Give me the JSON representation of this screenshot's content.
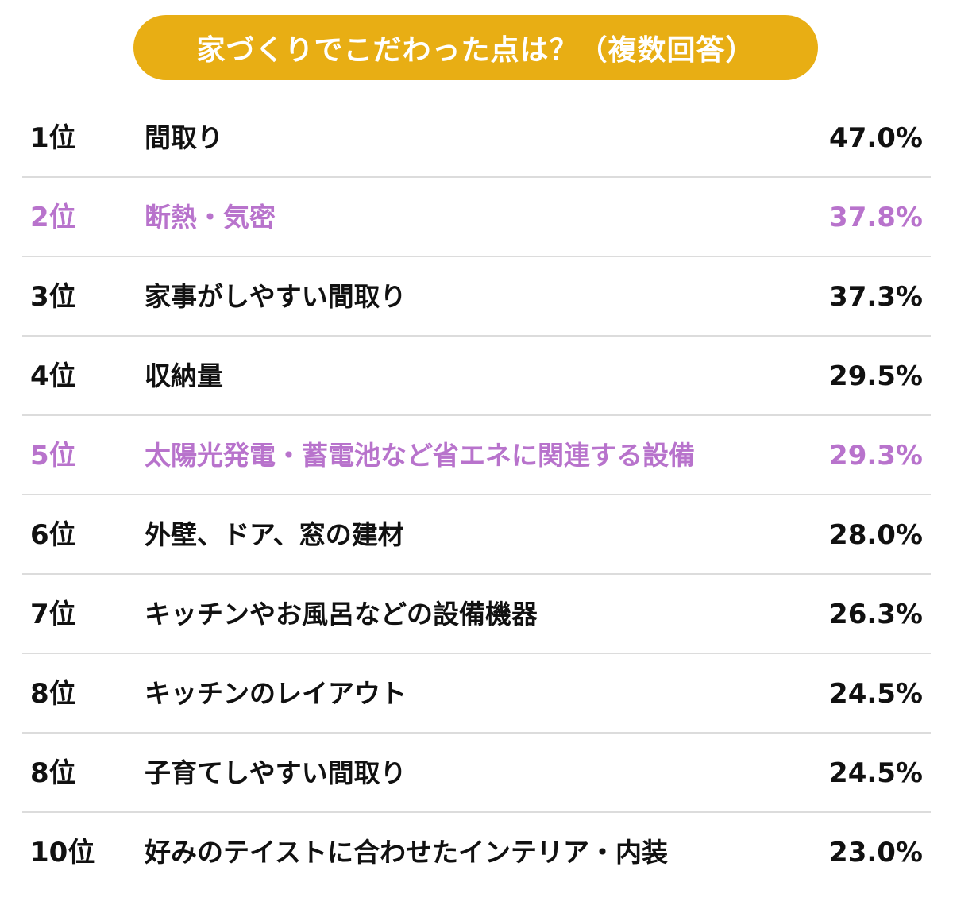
{
  "title": "家づくりでこだわった点は？（複数回答）",
  "colors": {
    "title_bg": "#E8AE14",
    "title_text": "#ffffff",
    "highlight": "#B873CC",
    "text": "#111111",
    "divider": "#dcdcdc"
  },
  "chart_data": {
    "type": "table",
    "title": "家づくりでこだわった点は？（複数回答）",
    "rows": [
      {
        "rank": "1位",
        "label": "間取り",
        "percent": "47.0%",
        "value": 47.0,
        "highlight": false
      },
      {
        "rank": "2位",
        "label": "断熱・気密",
        "percent": "37.8%",
        "value": 37.8,
        "highlight": true
      },
      {
        "rank": "3位",
        "label": "家事がしやすい間取り",
        "percent": "37.3%",
        "value": 37.3,
        "highlight": false
      },
      {
        "rank": "4位",
        "label": "収納量",
        "percent": "29.5%",
        "value": 29.5,
        "highlight": false
      },
      {
        "rank": "5位",
        "label": "太陽光発電・蓄電池など省エネに関連する設備",
        "percent": "29.3%",
        "value": 29.3,
        "highlight": true
      },
      {
        "rank": "6位",
        "label": "外壁、ドア、窓の建材",
        "percent": "28.0%",
        "value": 28.0,
        "highlight": false
      },
      {
        "rank": "7位",
        "label": "キッチンやお風呂などの設備機器",
        "percent": "26.3%",
        "value": 26.3,
        "highlight": false
      },
      {
        "rank": "8位",
        "label": "キッチンのレイアウト",
        "percent": "24.5%",
        "value": 24.5,
        "highlight": false
      },
      {
        "rank": "8位",
        "label": "子育てしやすい間取り",
        "percent": "24.5%",
        "value": 24.5,
        "highlight": false
      },
      {
        "rank": "10位",
        "label": "好みのテイストに合わせたインテリア・内装",
        "percent": "23.0%",
        "value": 23.0,
        "highlight": false
      }
    ]
  }
}
